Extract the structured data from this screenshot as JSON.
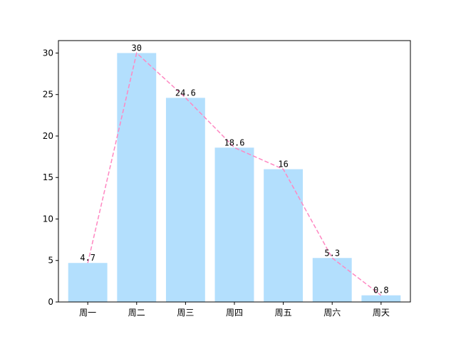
{
  "chart_data": {
    "type": "bar",
    "categories": [
      "周一",
      "周二",
      "周三",
      "周四",
      "周五",
      "周六",
      "周天"
    ],
    "values": [
      4.7,
      30,
      24.6,
      18.6,
      16,
      5.3,
      0.8
    ],
    "value_labels": [
      "4.7",
      "30",
      "24.6",
      "18.6",
      "16",
      "5.3",
      "0.8"
    ],
    "overlay": "line",
    "ylim": [
      0,
      31.5
    ],
    "yticks": [
      0,
      5,
      10,
      15,
      20,
      25,
      30
    ],
    "grid": false,
    "title": "",
    "xlabel": "",
    "ylabel": "",
    "colors": {
      "bar": "#b3dffd",
      "line": "#ff88c2",
      "axis": "#000000"
    }
  }
}
